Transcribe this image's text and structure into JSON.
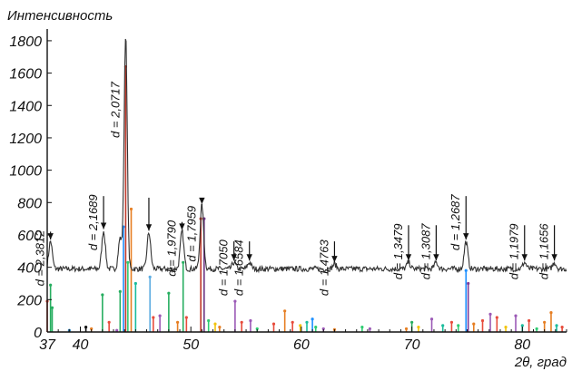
{
  "chart_data": {
    "type": "line",
    "ylabel": "Интенсивность",
    "xlabel": "2θ, град",
    "xlim": [
      37,
      84
    ],
    "ylim": [
      0,
      1850
    ],
    "yticks": [
      "0",
      "200",
      "400",
      "600",
      "800",
      "1000",
      "1200",
      "1400",
      "1600",
      "1800"
    ],
    "xticks": [
      "37",
      "40",
      "50",
      "60",
      "70",
      "80"
    ],
    "grid": false,
    "pattern": {
      "name": "",
      "baseline": 390,
      "peaks": [
        {
          "x": 37.3,
          "y": 560,
          "label": "d = 2,3812",
          "arrow_from": 620
        },
        {
          "x": 42.1,
          "y": 625,
          "label": "d = 2,1689",
          "arrow_from": 840
        },
        {
          "x": 43.6,
          "y": 580
        },
        {
          "x": 44.1,
          "y": 1840,
          "label": "d = 2,0717",
          "arrow_from": null
        },
        {
          "x": 46.2,
          "y": 615,
          "label": "",
          "arrow_from": 830
        },
        {
          "x": 49.2,
          "y": 620,
          "label": "d = 1,9790",
          "arrow_from": 680
        },
        {
          "x": 51.0,
          "y": 780,
          "label": "d = 1,7959",
          "arrow_from": 770
        },
        {
          "x": 53.9,
          "y": 430,
          "label": "d = 1,7050",
          "arrow_from": 560
        },
        {
          "x": 55.3,
          "y": 430,
          "label": "d = 1,6584",
          "arrow_from": 560
        },
        {
          "x": 63.0,
          "y": 420,
          "label": "d = 1,4763",
          "arrow_from": 560
        },
        {
          "x": 69.7,
          "y": 430,
          "label": "d = 1,3479",
          "arrow_from": 660
        },
        {
          "x": 72.2,
          "y": 430,
          "label": "d = 1,3087",
          "arrow_from": 660
        },
        {
          "x": 74.9,
          "y": 560,
          "label": "d = 1,2687",
          "arrow_from": 840
        },
        {
          "x": 80.2,
          "y": 430,
          "label": "d = 1,1979",
          "arrow_from": 660
        },
        {
          "x": 82.9,
          "y": 430,
          "label": "d = 1,1656",
          "arrow_from": 660
        }
      ]
    },
    "reference_lines": [
      {
        "x": 37.0,
        "y": 190,
        "color": "#e74c3c"
      },
      {
        "x": 37.3,
        "y": 290,
        "color": "#27ae60"
      },
      {
        "x": 37.45,
        "y": 150,
        "color": "#27ae60"
      },
      {
        "x": 39.0,
        "y": 10,
        "color": "#2980b9"
      },
      {
        "x": 40.5,
        "y": 30,
        "color": "#111111"
      },
      {
        "x": 41.0,
        "y": 20,
        "color": "#e67e22"
      },
      {
        "x": 42.0,
        "y": 230,
        "color": "#27ae60"
      },
      {
        "x": 42.6,
        "y": 60,
        "color": "#e74c3c"
      },
      {
        "x": 43.3,
        "y": 10,
        "color": "#9b59b6"
      },
      {
        "x": 43.6,
        "y": 250,
        "color": "#27ae60"
      },
      {
        "x": 43.9,
        "y": 650,
        "color": "#1e90ff"
      },
      {
        "x": 44.1,
        "y": 1640,
        "color": "#c0392b"
      },
      {
        "x": 44.3,
        "y": 430,
        "color": "#2ecc71"
      },
      {
        "x": 44.6,
        "y": 760,
        "color": "#e67e22"
      },
      {
        "x": 45.0,
        "y": 300,
        "color": "#1abc9c"
      },
      {
        "x": 46.3,
        "y": 340,
        "color": "#5dade2"
      },
      {
        "x": 46.6,
        "y": 90,
        "color": "#e74c3c"
      },
      {
        "x": 47.2,
        "y": 100,
        "color": "#9b59b6"
      },
      {
        "x": 48.0,
        "y": 240,
        "color": "#27ae60"
      },
      {
        "x": 48.8,
        "y": 60,
        "color": "#e67e22"
      },
      {
        "x": 49.3,
        "y": 430,
        "color": "#27ae60"
      },
      {
        "x": 49.6,
        "y": 90,
        "color": "#e74c3c"
      },
      {
        "x": 50.9,
        "y": 700,
        "color": "#c0392b"
      },
      {
        "x": 51.2,
        "y": 700,
        "color": "#6c3483"
      },
      {
        "x": 51.6,
        "y": 70,
        "color": "#2ecc71"
      },
      {
        "x": 52.2,
        "y": 50,
        "color": "#f1c40f"
      },
      {
        "x": 52.6,
        "y": 30,
        "color": "#e67e22"
      },
      {
        "x": 54.0,
        "y": 190,
        "color": "#9b59b6"
      },
      {
        "x": 54.6,
        "y": 60,
        "color": "#e74c3c"
      },
      {
        "x": 55.4,
        "y": 70,
        "color": "#9b59b6"
      },
      {
        "x": 56.0,
        "y": 20,
        "color": "#2ecc71"
      },
      {
        "x": 57.5,
        "y": 50,
        "color": "#e74c3c"
      },
      {
        "x": 58.5,
        "y": 130,
        "color": "#e67e22"
      },
      {
        "x": 59.2,
        "y": 60,
        "color": "#e74c3c"
      },
      {
        "x": 59.9,
        "y": 40,
        "color": "#f1c40f"
      },
      {
        "x": 60.5,
        "y": 60,
        "color": "#1abc9c"
      },
      {
        "x": 61.0,
        "y": 80,
        "color": "#1e90ff"
      },
      {
        "x": 61.3,
        "y": 30,
        "color": "#2ecc71"
      },
      {
        "x": 62.0,
        "y": 20,
        "color": "#9b59b6"
      },
      {
        "x": 63.0,
        "y": 15,
        "color": "#e67e22"
      },
      {
        "x": 65.5,
        "y": 30,
        "color": "#2ecc71"
      },
      {
        "x": 66.2,
        "y": 20,
        "color": "#9b59b6"
      },
      {
        "x": 69.5,
        "y": 20,
        "color": "#e67e22"
      },
      {
        "x": 70.0,
        "y": 60,
        "color": "#27ae60"
      },
      {
        "x": 70.6,
        "y": 30,
        "color": "#f1c40f"
      },
      {
        "x": 71.8,
        "y": 80,
        "color": "#9b59b6"
      },
      {
        "x": 72.8,
        "y": 40,
        "color": "#1abc9c"
      },
      {
        "x": 73.6,
        "y": 60,
        "color": "#e74c3c"
      },
      {
        "x": 74.2,
        "y": 40,
        "color": "#2ecc71"
      },
      {
        "x": 74.9,
        "y": 380,
        "color": "#1e90ff"
      },
      {
        "x": 75.1,
        "y": 300,
        "color": "#7d3c98"
      },
      {
        "x": 75.6,
        "y": 50,
        "color": "#e67e22"
      },
      {
        "x": 76.4,
        "y": 70,
        "color": "#e74c3c"
      },
      {
        "x": 77.1,
        "y": 110,
        "color": "#9b59b6"
      },
      {
        "x": 77.7,
        "y": 90,
        "color": "#e74c3c"
      },
      {
        "x": 78.5,
        "y": 30,
        "color": "#f1c40f"
      },
      {
        "x": 79.4,
        "y": 100,
        "color": "#9b59b6"
      },
      {
        "x": 80.0,
        "y": 40,
        "color": "#1abc9c"
      },
      {
        "x": 80.6,
        "y": 70,
        "color": "#e74c3c"
      },
      {
        "x": 81.3,
        "y": 20,
        "color": "#2ecc71"
      },
      {
        "x": 82.0,
        "y": 60,
        "color": "#e67e22"
      },
      {
        "x": 82.6,
        "y": 120,
        "color": "#e67e22"
      },
      {
        "x": 83.1,
        "y": 40,
        "color": "#1abc9c"
      },
      {
        "x": 83.6,
        "y": 30,
        "color": "#e74c3c"
      }
    ]
  }
}
